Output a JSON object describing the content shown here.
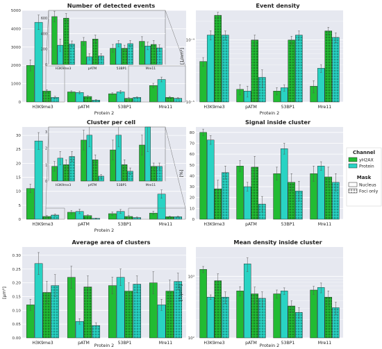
{
  "colors": {
    "yH2AX": "#22bb33",
    "Protein": "#29d3c3",
    "panel_bg": "#e6e8f0",
    "grid": "#ffffff",
    "edge": "#222222"
  },
  "legend": {
    "channel_title": "Channel",
    "channel_items": [
      "yH2AX",
      "Protein"
    ],
    "mask_title": "Mask",
    "mask_items": [
      "Nucleus",
      "Foci only"
    ]
  },
  "chart_data": [
    {
      "id": "events",
      "type": "bar",
      "title": "Number of detected events",
      "xlabel": "Protein 2",
      "ylabel": "",
      "scale": "linear",
      "ylim": [
        0,
        5000
      ],
      "yticks": [
        0,
        1000,
        2000,
        3000,
        4000,
        5000
      ],
      "ytick_labels": [
        "0",
        "1000",
        "2000",
        "3000",
        "4000",
        "5000"
      ],
      "categories": [
        "H3K9me3",
        "pATM",
        "53BP1",
        "Mre11"
      ],
      "series": [
        {
          "channel": "yH2AX",
          "mask": "Nucleus",
          "values": [
            2000,
            550,
            450,
            900
          ]
        },
        {
          "channel": "Protein",
          "mask": "Nucleus",
          "values": [
            4350,
            520,
            550,
            1230
          ]
        },
        {
          "channel": "yH2AX",
          "mask": "Foci only",
          "values": [
            600,
            300,
            200,
            250
          ]
        },
        {
          "channel": "Protein",
          "mask": "Foci only",
          "values": [
            250,
            100,
            250,
            200
          ]
        }
      ],
      "errors": [
        [
          300,
          60,
          50,
          120
        ],
        [
          400,
          70,
          80,
          130
        ],
        [
          70,
          50,
          40,
          50
        ],
        [
          60,
          30,
          30,
          40
        ]
      ],
      "inset": {
        "ylim": [
          0,
          700
        ],
        "yticks": [
          0,
          200,
          400,
          600
        ],
        "ytick_labels": [
          "0",
          "200",
          "400",
          "600"
        ],
        "values": [
          [
            620,
            300,
            210,
            300
          ],
          [
            250,
            100,
            270,
            240
          ],
          [
            600,
            330,
            210,
            260
          ],
          [
            265,
            110,
            270,
            215
          ]
        ],
        "errors": [
          [
            70,
            50,
            50,
            60
          ],
          [
            80,
            40,
            40,
            50
          ],
          [
            60,
            50,
            40,
            50
          ],
          [
            40,
            30,
            40,
            40
          ]
        ]
      }
    },
    {
      "id": "density",
      "type": "bar",
      "title": "Event density",
      "xlabel": "Protein 2",
      "ylabel": "[1/nm²]",
      "scale": "log",
      "ylim": [
        1e-05,
        0.0003
      ],
      "yticks": [
        1e-05,
        0.0001
      ],
      "ytick_labels": [
        "10⁻⁵",
        "10⁻⁴"
      ],
      "categories": [
        "H3K9me3",
        "pATM",
        "53BP1",
        "Mre11"
      ],
      "series": [
        {
          "channel": "yH2AX",
          "mask": "Nucleus",
          "values": [
            4.5e-05,
            1.6e-05,
            1.5e-05,
            1.8e-05
          ]
        },
        {
          "channel": "Protein",
          "mask": "Nucleus",
          "values": [
            0.00012,
            1.5e-05,
            1.7e-05,
            3.5e-05
          ]
        },
        {
          "channel": "yH2AX",
          "mask": "Foci only",
          "values": [
            0.00025,
            0.0001,
            0.0001,
            0.00014
          ]
        },
        {
          "channel": "Protein",
          "mask": "Foci only",
          "values": [
            0.00012,
            2.5e-05,
            0.00012,
            0.00011
          ]
        }
      ],
      "errors": [
        [
          7e-06,
          3e-06,
          2e-06,
          4e-06
        ],
        [
          2e-05,
          3e-06,
          2e-06,
          5e-06
        ],
        [
          3e-05,
          2e-05,
          1.5e-05,
          2e-05
        ],
        [
          2e-05,
          8e-06,
          2e-05,
          2e-05
        ]
      ]
    },
    {
      "id": "cluster",
      "type": "bar",
      "title": "Cluster per cell",
      "xlabel": "Protein 2",
      "ylabel": "",
      "scale": "linear",
      "ylim": [
        0,
        33
      ],
      "yticks": [
        0,
        5,
        10,
        15,
        20,
        25,
        30
      ],
      "ytick_labels": [
        "0",
        "5",
        "10",
        "15",
        "20",
        "25",
        "30"
      ],
      "categories": [
        "H3K9me3",
        "pATM",
        "53BP1",
        "Mre11"
      ],
      "series": [
        {
          "channel": "yH2AX",
          "mask": "Nucleus",
          "values": [
            11,
            2.5,
            2,
            2.2
          ]
        },
        {
          "channel": "Protein",
          "mask": "Nucleus",
          "values": [
            28,
            2.8,
            2.8,
            9
          ]
        },
        {
          "channel": "yH2AX",
          "mask": "Foci only",
          "values": [
            1,
            1.3,
            1,
            0.9
          ]
        },
        {
          "channel": "Protein",
          "mask": "Foci only",
          "values": [
            1.5,
            0.3,
            0.6,
            0.9
          ]
        }
      ],
      "errors": [
        [
          1.5,
          0.6,
          0.6,
          0.6
        ],
        [
          3,
          0.8,
          0.7,
          1.5
        ],
        [
          0.3,
          0.3,
          0.3,
          0.2
        ],
        [
          0.4,
          0.1,
          0.2,
          0.2
        ]
      ],
      "inset": {
        "ylim": [
          0,
          3.3
        ],
        "yticks": [
          0,
          1,
          2,
          3
        ],
        "ytick_labels": [
          "0",
          "1",
          "2",
          "3"
        ],
        "values": [
          [
            0.9,
            2.5,
            1.9,
            2.2
          ],
          [
            1.4,
            2.8,
            2.8,
            3.3
          ],
          [
            1.0,
            1.3,
            1.0,
            0.9
          ],
          [
            1.5,
            0.3,
            0.6,
            0.9
          ]
        ],
        "errors": [
          [
            0.3,
            0.6,
            0.6,
            0.6
          ],
          [
            0.4,
            0.7,
            0.7,
            1.5
          ],
          [
            0.3,
            0.3,
            0.3,
            0.2
          ],
          [
            0.3,
            0.1,
            0.2,
            0.2
          ]
        ]
      }
    },
    {
      "id": "signal",
      "type": "bar",
      "title": "Signal inside cluster",
      "xlabel": "",
      "ylabel": "[%]",
      "scale": "linear",
      "ylim": [
        0,
        85
      ],
      "yticks": [
        0,
        10,
        20,
        30,
        40,
        50,
        60,
        70,
        80
      ],
      "ytick_labels": [
        "0",
        "10",
        "20",
        "30",
        "40",
        "50",
        "60",
        "70",
        "80"
      ],
      "categories": [
        "H3K9me3",
        "pATM",
        "53BP1",
        "Mre11"
      ],
      "series": [
        {
          "channel": "yH2AX",
          "mask": "Nucleus",
          "values": [
            80,
            49,
            42,
            42
          ]
        },
        {
          "channel": "Protein",
          "mask": "Nucleus",
          "values": [
            73,
            30,
            65,
            49
          ]
        },
        {
          "channel": "yH2AX",
          "mask": "Foci only",
          "values": [
            28,
            48,
            34,
            39
          ]
        },
        {
          "channel": "Protein",
          "mask": "Foci only",
          "values": [
            43,
            14,
            26,
            34
          ]
        }
      ],
      "errors": [
        [
          3,
          5,
          6,
          7
        ],
        [
          4,
          4,
          5,
          4
        ],
        [
          8,
          10,
          8,
          9
        ],
        [
          6,
          7,
          9,
          8
        ]
      ]
    },
    {
      "id": "area",
      "type": "bar",
      "title": "Average area of clusters",
      "xlabel": "Protein 2",
      "ylabel": "[µm²]",
      "scale": "linear",
      "ylim": [
        0,
        0.33
      ],
      "yticks": [
        0,
        0.05,
        0.1,
        0.15,
        0.2,
        0.25,
        0.3
      ],
      "ytick_labels": [
        "0.00",
        "0.05",
        "0.10",
        "0.15",
        "0.20",
        "0.25",
        "0.30"
      ],
      "categories": [
        "H3K9me3",
        "pATM",
        "53BP1",
        "Mre11"
      ],
      "series": [
        {
          "channel": "yH2AX",
          "mask": "Nucleus",
          "values": [
            0.12,
            0.22,
            0.19,
            0.2
          ]
        },
        {
          "channel": "Protein",
          "mask": "Nucleus",
          "values": [
            0.27,
            0.06,
            0.22,
            0.12
          ]
        },
        {
          "channel": "yH2AX",
          "mask": "Foci only",
          "values": [
            0.165,
            0.185,
            0.17,
            0.17
          ]
        },
        {
          "channel": "Protein",
          "mask": "Foci only",
          "values": [
            0.19,
            0.045,
            0.195,
            0.205
          ]
        }
      ],
      "errors": [
        [
          0.02,
          0.04,
          0.03,
          0.04
        ],
        [
          0.04,
          0.01,
          0.03,
          0.02
        ],
        [
          0.04,
          0.04,
          0.03,
          0.04
        ],
        [
          0.04,
          0.01,
          0.03,
          0.03
        ]
      ]
    },
    {
      "id": "meandensity",
      "type": "bar",
      "title": "Mean density inside cluster",
      "xlabel": "Protein 2",
      "ylabel": "[1/µm²]",
      "scale": "log",
      "ylim": [
        100,
        3000
      ],
      "yticks": [
        100,
        1000
      ],
      "ytick_labels": [
        "10²",
        "10³"
      ],
      "categories": [
        "H3K9me3",
        "pATM",
        "53BP1",
        "Mre11"
      ],
      "series": [
        {
          "channel": "yH2AX",
          "mask": "Nucleus",
          "values": [
            1300,
            580,
            520,
            600
          ]
        },
        {
          "channel": "Protein",
          "mask": "Nucleus",
          "values": [
            460,
            1600,
            580,
            660
          ]
        },
        {
          "channel": "yH2AX",
          "mask": "Foci only",
          "values": [
            850,
            520,
            330,
            460
          ]
        },
        {
          "channel": "Protein",
          "mask": "Foci only",
          "values": [
            460,
            440,
            260,
            310
          ]
        }
      ],
      "errors": [
        [
          150,
          100,
          80,
          90
        ],
        [
          40,
          400,
          70,
          120
        ],
        [
          250,
          150,
          70,
          120
        ],
        [
          100,
          120,
          50,
          70
        ]
      ]
    }
  ]
}
